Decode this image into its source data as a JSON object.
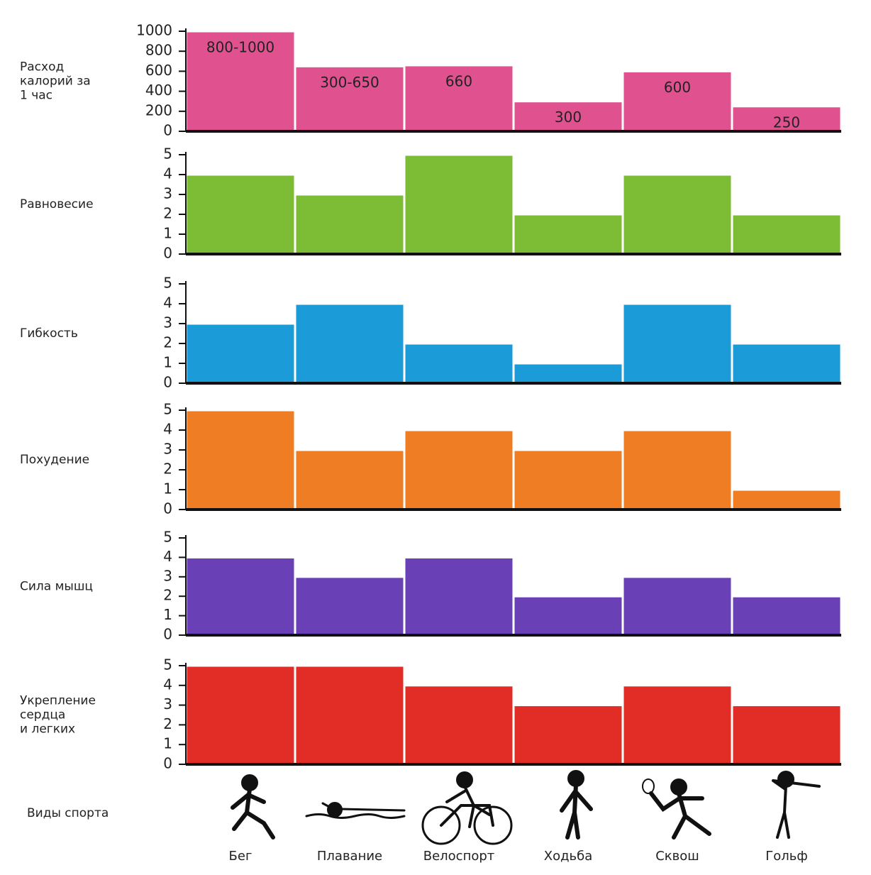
{
  "chart_data": [
    {
      "type": "bar",
      "ylabel": [
        "Расход",
        "калорий за",
        "1 час"
      ],
      "color": "#e0528f",
      "values": [
        1000,
        650,
        660,
        300,
        600,
        250
      ],
      "value_labels": [
        "800-1000",
        "300-650",
        "660",
        "300",
        "600",
        "250"
      ],
      "ylim": [
        0,
        1000
      ],
      "yticks": [
        0,
        200,
        400,
        600,
        800,
        1000
      ]
    },
    {
      "type": "bar",
      "ylabel": [
        "Равновесие"
      ],
      "color": "#7dbd36",
      "values": [
        4,
        3,
        5,
        2,
        4,
        2
      ],
      "ylim": [
        0,
        5
      ],
      "yticks": [
        0,
        1,
        2,
        3,
        4,
        5
      ]
    },
    {
      "type": "bar",
      "ylabel": [
        "Гибкость"
      ],
      "color": "#1b9bd7",
      "values": [
        3,
        4,
        2,
        1,
        4,
        2
      ],
      "ylim": [
        0,
        5
      ],
      "yticks": [
        0,
        1,
        2,
        3,
        4,
        5
      ]
    },
    {
      "type": "bar",
      "ylabel": [
        "Похудение"
      ],
      "color": "#ef7d23",
      "values": [
        5,
        3,
        4,
        3,
        4,
        1
      ],
      "ylim": [
        0,
        5
      ],
      "yticks": [
        0,
        1,
        2,
        3,
        4,
        5
      ]
    },
    {
      "type": "bar",
      "ylabel": [
        "Сила мышц"
      ],
      "color": "#6a40b6",
      "values": [
        4,
        3,
        4,
        2,
        3,
        2
      ],
      "ylim": [
        0,
        5
      ],
      "yticks": [
        0,
        1,
        2,
        3,
        4,
        5
      ]
    },
    {
      "type": "bar",
      "ylabel": [
        "Укрепление",
        "сердца",
        "и легких"
      ],
      "color": "#e22c26",
      "values": [
        5,
        5,
        4,
        3,
        4,
        3
      ],
      "ylim": [
        0,
        5
      ],
      "yticks": [
        0,
        1,
        2,
        3,
        4,
        5
      ]
    }
  ],
  "x_axis": {
    "label": "Виды спорта",
    "categories": [
      "Бег",
      "Плавание",
      "Велоспорт",
      "Ходьба",
      "Сквош",
      "Гольф"
    ]
  }
}
